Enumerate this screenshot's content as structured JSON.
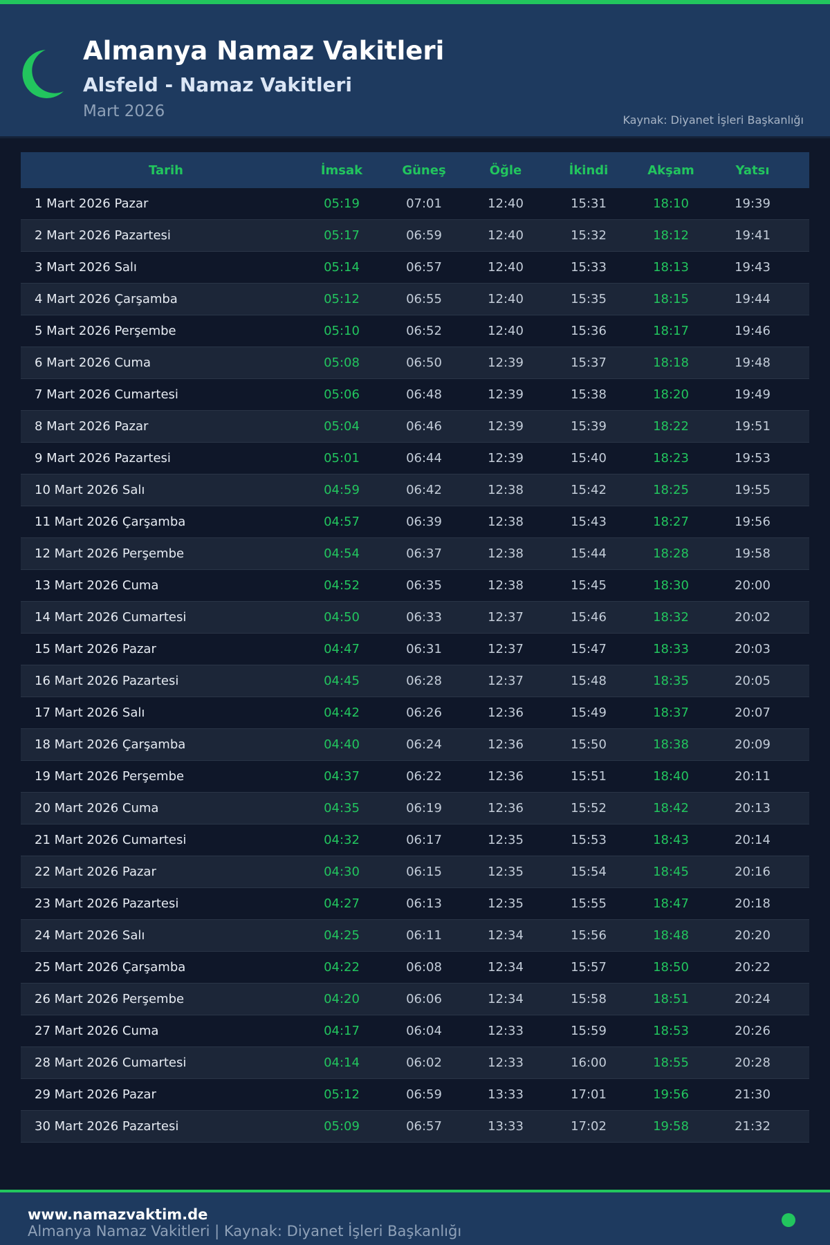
{
  "header": {
    "title": "Almanya Namaz Vakitleri",
    "subtitle": "Alsfeld - Namaz Vakitleri",
    "month": "Mart 2026",
    "source": "Kaynak: Diyanet İşleri Başkanlığı",
    "icon": "crescent-moon-icon"
  },
  "colors": {
    "accent": "#22c55e",
    "header_bg": "#1e3a5f",
    "page_bg": "#0f1729"
  },
  "table": {
    "columns": [
      "Tarih",
      "İmsak",
      "Güneş",
      "Öğle",
      "İkindi",
      "Akşam",
      "Yatsı"
    ],
    "rows": [
      [
        "1 Mart 2026 Pazar",
        "05:19",
        "07:01",
        "12:40",
        "15:31",
        "18:10",
        "19:39"
      ],
      [
        "2 Mart 2026 Pazartesi",
        "05:17",
        "06:59",
        "12:40",
        "15:32",
        "18:12",
        "19:41"
      ],
      [
        "3 Mart 2026 Salı",
        "05:14",
        "06:57",
        "12:40",
        "15:33",
        "18:13",
        "19:43"
      ],
      [
        "4 Mart 2026 Çarşamba",
        "05:12",
        "06:55",
        "12:40",
        "15:35",
        "18:15",
        "19:44"
      ],
      [
        "5 Mart 2026 Perşembe",
        "05:10",
        "06:52",
        "12:40",
        "15:36",
        "18:17",
        "19:46"
      ],
      [
        "6 Mart 2026 Cuma",
        "05:08",
        "06:50",
        "12:39",
        "15:37",
        "18:18",
        "19:48"
      ],
      [
        "7 Mart 2026 Cumartesi",
        "05:06",
        "06:48",
        "12:39",
        "15:38",
        "18:20",
        "19:49"
      ],
      [
        "8 Mart 2026 Pazar",
        "05:04",
        "06:46",
        "12:39",
        "15:39",
        "18:22",
        "19:51"
      ],
      [
        "9 Mart 2026 Pazartesi",
        "05:01",
        "06:44",
        "12:39",
        "15:40",
        "18:23",
        "19:53"
      ],
      [
        "10 Mart 2026 Salı",
        "04:59",
        "06:42",
        "12:38",
        "15:42",
        "18:25",
        "19:55"
      ],
      [
        "11 Mart 2026 Çarşamba",
        "04:57",
        "06:39",
        "12:38",
        "15:43",
        "18:27",
        "19:56"
      ],
      [
        "12 Mart 2026 Perşembe",
        "04:54",
        "06:37",
        "12:38",
        "15:44",
        "18:28",
        "19:58"
      ],
      [
        "13 Mart 2026 Cuma",
        "04:52",
        "06:35",
        "12:38",
        "15:45",
        "18:30",
        "20:00"
      ],
      [
        "14 Mart 2026 Cumartesi",
        "04:50",
        "06:33",
        "12:37",
        "15:46",
        "18:32",
        "20:02"
      ],
      [
        "15 Mart 2026 Pazar",
        "04:47",
        "06:31",
        "12:37",
        "15:47",
        "18:33",
        "20:03"
      ],
      [
        "16 Mart 2026 Pazartesi",
        "04:45",
        "06:28",
        "12:37",
        "15:48",
        "18:35",
        "20:05"
      ],
      [
        "17 Mart 2026 Salı",
        "04:42",
        "06:26",
        "12:36",
        "15:49",
        "18:37",
        "20:07"
      ],
      [
        "18 Mart 2026 Çarşamba",
        "04:40",
        "06:24",
        "12:36",
        "15:50",
        "18:38",
        "20:09"
      ],
      [
        "19 Mart 2026 Perşembe",
        "04:37",
        "06:22",
        "12:36",
        "15:51",
        "18:40",
        "20:11"
      ],
      [
        "20 Mart 2026 Cuma",
        "04:35",
        "06:19",
        "12:36",
        "15:52",
        "18:42",
        "20:13"
      ],
      [
        "21 Mart 2026 Cumartesi",
        "04:32",
        "06:17",
        "12:35",
        "15:53",
        "18:43",
        "20:14"
      ],
      [
        "22 Mart 2026 Pazar",
        "04:30",
        "06:15",
        "12:35",
        "15:54",
        "18:45",
        "20:16"
      ],
      [
        "23 Mart 2026 Pazartesi",
        "04:27",
        "06:13",
        "12:35",
        "15:55",
        "18:47",
        "20:18"
      ],
      [
        "24 Mart 2026 Salı",
        "04:25",
        "06:11",
        "12:34",
        "15:56",
        "18:48",
        "20:20"
      ],
      [
        "25 Mart 2026 Çarşamba",
        "04:22",
        "06:08",
        "12:34",
        "15:57",
        "18:50",
        "20:22"
      ],
      [
        "26 Mart 2026 Perşembe",
        "04:20",
        "06:06",
        "12:34",
        "15:58",
        "18:51",
        "20:24"
      ],
      [
        "27 Mart 2026 Cuma",
        "04:17",
        "06:04",
        "12:33",
        "15:59",
        "18:53",
        "20:26"
      ],
      [
        "28 Mart 2026 Cumartesi",
        "04:14",
        "06:02",
        "12:33",
        "16:00",
        "18:55",
        "20:28"
      ],
      [
        "29 Mart 2026 Pazar",
        "05:12",
        "06:59",
        "13:33",
        "17:01",
        "19:56",
        "21:30"
      ],
      [
        "30 Mart 2026 Pazartesi",
        "05:09",
        "06:57",
        "13:33",
        "17:02",
        "19:58",
        "21:32"
      ]
    ]
  },
  "footer": {
    "site": "www.namazvaktim.de",
    "text": "Almanya Namaz Vakitleri | Kaynak: Diyanet İşleri Başkanlığı"
  }
}
